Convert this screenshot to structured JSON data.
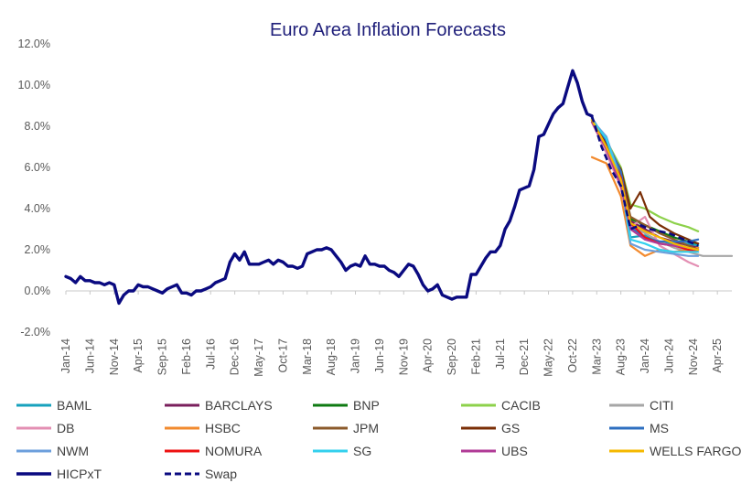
{
  "chart_data": {
    "type": "line",
    "title": "Euro Area Inflation Forecasts",
    "xlabel": "",
    "ylabel": "",
    "ylim": [
      -2,
      12
    ],
    "y_ticks": [
      "-2.0%",
      "0.0%",
      "2.0%",
      "4.0%",
      "6.0%",
      "8.0%",
      "10.0%",
      "12.0%"
    ],
    "x_range": [
      "2014-01",
      "2025-07"
    ],
    "x_ticks": [
      "Jan-14",
      "Jun-14",
      "Nov-14",
      "Apr-15",
      "Sep-15",
      "Feb-16",
      "Jul-16",
      "Dec-16",
      "May-17",
      "Oct-17",
      "Mar-18",
      "Aug-18",
      "Jan-19",
      "Jun-19",
      "Nov-19",
      "Apr-20",
      "Sep-20",
      "Feb-21",
      "Jul-21",
      "Dec-21",
      "May-22",
      "Oct-22",
      "Mar-23",
      "Aug-23",
      "Jan-24",
      "Jun-24",
      "Nov-24",
      "Apr-25"
    ],
    "grid": false,
    "legend_position": "bottom",
    "series": [
      {
        "name": "BAML",
        "color": "#17a2bd",
        "dash": false,
        "width": 2.2,
        "x": [
          "2023-02",
          "2023-05",
          "2023-08",
          "2023-10",
          "2024-01",
          "2024-04",
          "2024-07",
          "2024-10",
          "2024-12"
        ],
        "y": [
          8.4,
          7.2,
          5.4,
          2.6,
          2.7,
          2.4,
          2.3,
          2.3,
          2.2
        ]
      },
      {
        "name": "BARCLAYS",
        "color": "#7a1f5c",
        "dash": false,
        "width": 2.2,
        "x": [
          "2023-02",
          "2023-05",
          "2023-08",
          "2023-10",
          "2024-01",
          "2024-04",
          "2024-07",
          "2024-10",
          "2024-12"
        ],
        "y": [
          8.3,
          6.9,
          5.2,
          3.4,
          3.0,
          2.6,
          2.4,
          2.2,
          2.1
        ]
      },
      {
        "name": "BNP",
        "color": "#0e7a12",
        "dash": false,
        "width": 2.2,
        "x": [
          "2023-02",
          "2023-05",
          "2023-08",
          "2023-10",
          "2024-01",
          "2024-04",
          "2024-07",
          "2024-10",
          "2024-12"
        ],
        "y": [
          8.3,
          7.0,
          5.6,
          3.5,
          3.2,
          2.9,
          2.6,
          2.4,
          2.3
        ]
      },
      {
        "name": "CACIB",
        "color": "#8dd14b",
        "dash": false,
        "width": 2.2,
        "x": [
          "2023-02",
          "2023-05",
          "2023-08",
          "2023-10",
          "2024-01",
          "2024-04",
          "2024-07",
          "2024-10",
          "2024-12"
        ],
        "y": [
          8.4,
          7.3,
          6.0,
          4.2,
          4.0,
          3.6,
          3.3,
          3.1,
          2.9
        ]
      },
      {
        "name": "CITI",
        "color": "#a6a6a6",
        "dash": false,
        "width": 2.2,
        "x": [
          "2023-02",
          "2023-05",
          "2023-08",
          "2023-10",
          "2024-01",
          "2024-04",
          "2024-07",
          "2024-10",
          "2025-01",
          "2025-04",
          "2025-07"
        ],
        "y": [
          8.3,
          6.8,
          5.2,
          3.2,
          2.8,
          2.4,
          2.1,
          1.9,
          1.7,
          1.7,
          1.7
        ]
      },
      {
        "name": "DB",
        "color": "#e38fb3",
        "dash": false,
        "width": 2.2,
        "x": [
          "2023-02",
          "2023-05",
          "2023-08",
          "2023-10",
          "2024-01",
          "2024-04",
          "2024-07",
          "2024-10",
          "2024-12"
        ],
        "y": [
          8.2,
          6.7,
          5.0,
          3.1,
          3.6,
          2.2,
          1.8,
          1.4,
          1.2
        ]
      },
      {
        "name": "HSBC",
        "color": "#f28a2e",
        "dash": false,
        "width": 2.2,
        "x": [
          "2023-02",
          "2023-05",
          "2023-08",
          "2023-10",
          "2024-01",
          "2024-04",
          "2024-07",
          "2024-10",
          "2024-12"
        ],
        "y": [
          6.5,
          6.2,
          4.6,
          2.2,
          1.7,
          2.0,
          1.9,
          2.0,
          2.1
        ]
      },
      {
        "name": "JPM",
        "color": "#8b5a2b",
        "dash": false,
        "width": 2.2,
        "x": [
          "2023-02",
          "2023-05",
          "2023-08",
          "2023-10",
          "2024-01",
          "2024-04",
          "2024-07",
          "2024-10",
          "2024-12"
        ],
        "y": [
          8.3,
          7.2,
          5.6,
          3.6,
          3.2,
          2.8,
          2.5,
          2.2,
          2.0
        ]
      },
      {
        "name": "GS",
        "color": "#7a2e06",
        "dash": false,
        "width": 2.2,
        "x": [
          "2023-02",
          "2023-05",
          "2023-08",
          "2023-10",
          "2023-12",
          "2024-02",
          "2024-04",
          "2024-07",
          "2024-10",
          "2024-12"
        ],
        "y": [
          8.4,
          7.1,
          5.9,
          4.0,
          4.8,
          3.6,
          3.2,
          2.8,
          2.5,
          2.3
        ]
      },
      {
        "name": "MS",
        "color": "#2e6fc0",
        "dash": false,
        "width": 2.2,
        "x": [
          "2023-02",
          "2023-05",
          "2023-08",
          "2023-10",
          "2024-01",
          "2024-04",
          "2024-07",
          "2024-10",
          "2024-12"
        ],
        "y": [
          8.4,
          7.3,
          5.8,
          3.1,
          2.6,
          2.4,
          2.4,
          2.4,
          2.5
        ]
      },
      {
        "name": "NWM",
        "color": "#6c9fdc",
        "dash": false,
        "width": 2.2,
        "x": [
          "2023-02",
          "2023-05",
          "2023-08",
          "2023-10",
          "2024-01",
          "2024-04",
          "2024-07",
          "2024-10",
          "2024-12"
        ],
        "y": [
          8.3,
          7.5,
          5.4,
          2.3,
          2.0,
          1.9,
          1.8,
          1.7,
          1.7
        ]
      },
      {
        "name": "NOMURA",
        "color": "#ee1111",
        "dash": false,
        "width": 2.2,
        "x": [
          "2023-02",
          "2023-05",
          "2023-08",
          "2023-10",
          "2024-01",
          "2024-04",
          "2024-07",
          "2024-10",
          "2024-12"
        ],
        "y": [
          8.3,
          7.0,
          5.5,
          3.3,
          2.6,
          2.3,
          2.2,
          2.0,
          1.9
        ]
      },
      {
        "name": "SG",
        "color": "#33d0ee",
        "dash": false,
        "width": 2.2,
        "x": [
          "2023-02",
          "2023-05",
          "2023-08",
          "2023-10",
          "2024-01",
          "2024-04",
          "2024-07",
          "2024-10",
          "2024-12"
        ],
        "y": [
          8.3,
          7.4,
          5.3,
          2.5,
          2.3,
          2.0,
          1.9,
          1.9,
          1.9
        ]
      },
      {
        "name": "UBS",
        "color": "#b03a96",
        "dash": false,
        "width": 2.2,
        "x": [
          "2023-02",
          "2023-05",
          "2023-08",
          "2023-10",
          "2024-01",
          "2024-04",
          "2024-07",
          "2024-10",
          "2024-12"
        ],
        "y": [
          8.2,
          6.9,
          5.1,
          3.0,
          2.5,
          2.3,
          2.2,
          2.1,
          2.0
        ]
      },
      {
        "name": "WELLS FARGO",
        "color": "#f5b800",
        "dash": false,
        "width": 2.2,
        "x": [
          "2023-02",
          "2023-05",
          "2023-08",
          "2023-10",
          "2024-01",
          "2024-04",
          "2024-07",
          "2024-10",
          "2024-12"
        ],
        "y": [
          8.3,
          7.0,
          5.4,
          3.3,
          2.9,
          2.6,
          2.3,
          2.1,
          2.0
        ]
      },
      {
        "name": "HICPxT",
        "color": "#0a0a80",
        "dash": false,
        "width": 3.4,
        "x": [
          "2014-01",
          "2014-02",
          "2014-03",
          "2014-04",
          "2014-05",
          "2014-06",
          "2014-07",
          "2014-08",
          "2014-09",
          "2014-10",
          "2014-11",
          "2014-12",
          "2015-01",
          "2015-02",
          "2015-03",
          "2015-04",
          "2015-05",
          "2015-06",
          "2015-07",
          "2015-08",
          "2015-09",
          "2015-10",
          "2015-11",
          "2015-12",
          "2016-01",
          "2016-02",
          "2016-03",
          "2016-04",
          "2016-05",
          "2016-06",
          "2016-07",
          "2016-08",
          "2016-09",
          "2016-10",
          "2016-11",
          "2016-12",
          "2017-01",
          "2017-02",
          "2017-03",
          "2017-04",
          "2017-05",
          "2017-06",
          "2017-07",
          "2017-08",
          "2017-09",
          "2017-10",
          "2017-11",
          "2017-12",
          "2018-01",
          "2018-02",
          "2018-03",
          "2018-04",
          "2018-05",
          "2018-06",
          "2018-07",
          "2018-08",
          "2018-09",
          "2018-10",
          "2018-11",
          "2018-12",
          "2019-01",
          "2019-02",
          "2019-03",
          "2019-04",
          "2019-05",
          "2019-06",
          "2019-07",
          "2019-08",
          "2019-09",
          "2019-10",
          "2019-11",
          "2019-12",
          "2020-01",
          "2020-02",
          "2020-03",
          "2020-04",
          "2020-05",
          "2020-06",
          "2020-07",
          "2020-08",
          "2020-09",
          "2020-10",
          "2020-11",
          "2020-12",
          "2021-01",
          "2021-02",
          "2021-03",
          "2021-04",
          "2021-05",
          "2021-06",
          "2021-07",
          "2021-08",
          "2021-09",
          "2021-10",
          "2021-11",
          "2021-12",
          "2022-01",
          "2022-02",
          "2022-03",
          "2022-04",
          "2022-05",
          "2022-06",
          "2022-07",
          "2022-08",
          "2022-09",
          "2022-10",
          "2022-11",
          "2022-12",
          "2023-01",
          "2023-02"
        ],
        "y": [
          0.7,
          0.6,
          0.4,
          0.7,
          0.5,
          0.5,
          0.4,
          0.4,
          0.3,
          0.4,
          0.3,
          -0.6,
          -0.2,
          0.0,
          0.0,
          0.3,
          0.2,
          0.2,
          0.1,
          0.0,
          -0.1,
          0.1,
          0.2,
          0.3,
          -0.1,
          -0.1,
          -0.2,
          0.0,
          0.0,
          0.1,
          0.2,
          0.4,
          0.5,
          0.6,
          1.4,
          1.8,
          1.5,
          1.9,
          1.3,
          1.3,
          1.3,
          1.4,
          1.5,
          1.3,
          1.5,
          1.4,
          1.2,
          1.2,
          1.1,
          1.2,
          1.8,
          1.9,
          2.0,
          2.0,
          2.1,
          2.0,
          1.7,
          1.4,
          1.0,
          1.2,
          1.3,
          1.2,
          1.7,
          1.3,
          1.3,
          1.2,
          1.2,
          1.0,
          0.9,
          0.7,
          1.0,
          1.3,
          1.2,
          0.8,
          0.3,
          0.0,
          0.1,
          0.3,
          -0.2,
          -0.3,
          -0.4,
          -0.3,
          -0.3,
          -0.3,
          0.8,
          0.8,
          1.2,
          1.6,
          1.9,
          1.9,
          2.2,
          3.0,
          3.4,
          4.1,
          4.9,
          5.0,
          5.1,
          5.9,
          7.5,
          7.6,
          8.1,
          8.6,
          8.9,
          9.1,
          9.9,
          10.7,
          10.1,
          9.2,
          8.6,
          8.5
        ]
      },
      {
        "name": "Swap",
        "color": "#0a0a80",
        "dash": true,
        "width": 2.6,
        "x": [
          "2023-02",
          "2023-04",
          "2023-06",
          "2023-08",
          "2023-10",
          "2023-12",
          "2024-02",
          "2024-04",
          "2024-06",
          "2024-08",
          "2024-10",
          "2024-12"
        ],
        "y": [
          8.5,
          7.0,
          5.9,
          5.1,
          3.0,
          3.2,
          3.0,
          2.9,
          2.8,
          2.6,
          2.4,
          2.2
        ]
      }
    ]
  }
}
